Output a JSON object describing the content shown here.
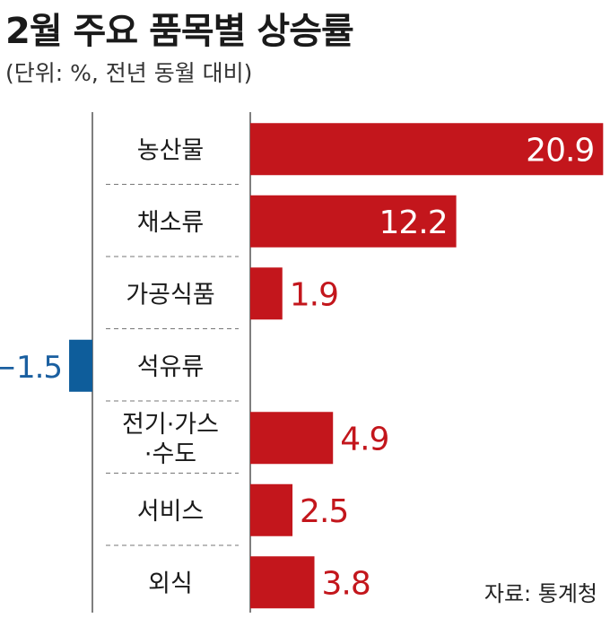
{
  "title": "2월 주요 품목별 상승률",
  "subtitle": "(단위: %, 전년 동월 대비)",
  "source": "자료: 통계청",
  "colors": {
    "positive": "#c3161c",
    "negative": "#0e5d9b",
    "axis": "#555555",
    "separator": "#777777"
  },
  "chart_data": {
    "type": "bar",
    "orientation": "horizontal",
    "categories": [
      "농산물",
      "채소류",
      "가공식품",
      "석유류",
      "전기·가스·수도",
      "서비스",
      "외식"
    ],
    "category_lines": [
      [
        "농산물"
      ],
      [
        "채소류"
      ],
      [
        "가공식품"
      ],
      [
        "석유류"
      ],
      [
        "전기·가스",
        "·수도"
      ],
      [
        "서비스"
      ],
      [
        "외식"
      ]
    ],
    "values": [
      20.9,
      12.2,
      1.9,
      -1.5,
      4.9,
      2.5,
      3.8
    ],
    "value_labels": [
      "20.9",
      "12.2",
      "1.9",
      "−1.5",
      "4.9",
      "2.5",
      "3.8"
    ],
    "title": "2월 주요 품목별 상승률",
    "unit": "%",
    "grid": false,
    "legend": "none"
  }
}
